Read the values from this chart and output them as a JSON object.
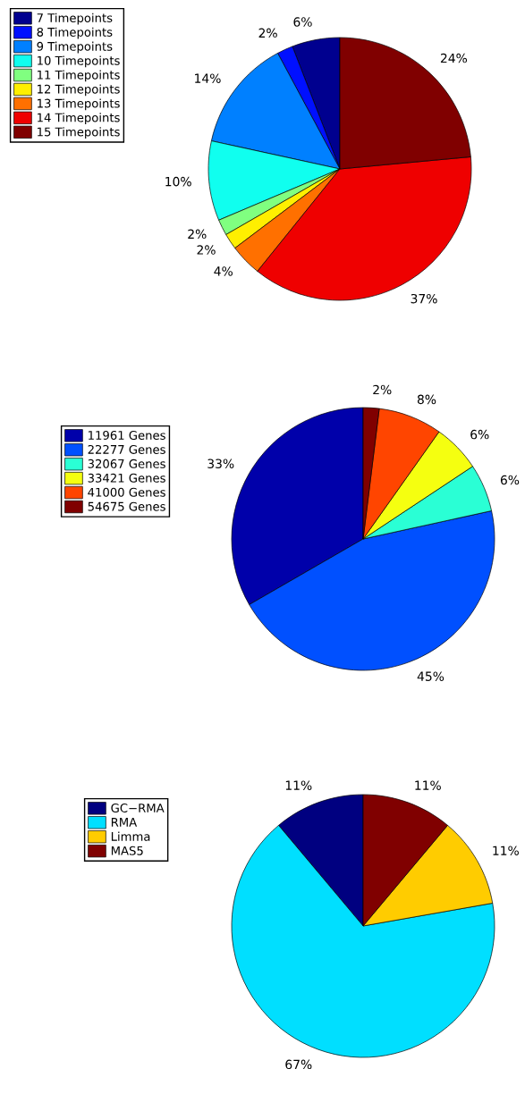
{
  "chart_data": [
    {
      "type": "pie",
      "legend": "top left",
      "categories": [
        "7 Timepoints",
        "8 Timepoints",
        "9 Timepoints",
        "10 Timepoints",
        "11 Timepoints",
        "12 Timepoints",
        "13 Timepoints",
        "14 Timepoints",
        "15 Timepoints"
      ],
      "values": [
        5.88,
        1.96,
        13.73,
        9.8,
        1.96,
        1.96,
        3.92,
        37.25,
        23.53
      ],
      "value_labels": [
        "6%",
        "2%",
        "14%",
        "10%",
        "2%",
        "2%",
        "4%",
        "37%",
        "24%"
      ],
      "colors": [
        "#00008f",
        "#0010ff",
        "#0080ff",
        "#10ffef",
        "#80ff80",
        "#ffef00",
        "#ff7000",
        "#ef0000",
        "#800000"
      ]
    },
    {
      "type": "pie",
      "legend": "top left",
      "categories": [
        "11961 Genes",
        "22277 Genes",
        "32067 Genes",
        "33421 Genes",
        "41000 Genes",
        "54675 Genes"
      ],
      "values": [
        33.33,
        45.1,
        5.88,
        5.88,
        7.84,
        1.96
      ],
      "value_labels": [
        "33%",
        "45%",
        "6%",
        "6%",
        "8%",
        "2%"
      ],
      "colors": [
        "#0000aa",
        "#0050ff",
        "#2affd5",
        "#f5ff10",
        "#ff4500",
        "#800000"
      ]
    },
    {
      "type": "pie",
      "legend": "top left",
      "categories": [
        "GC−RMA",
        "RMA",
        "Limma",
        "MAS5"
      ],
      "values": [
        11.11,
        66.67,
        11.11,
        11.11
      ],
      "value_labels": [
        "11%",
        "67%",
        "11%",
        "11%"
      ],
      "colors": [
        "#000080",
        "#00dfff",
        "#ffcc00",
        "#800000"
      ]
    }
  ]
}
